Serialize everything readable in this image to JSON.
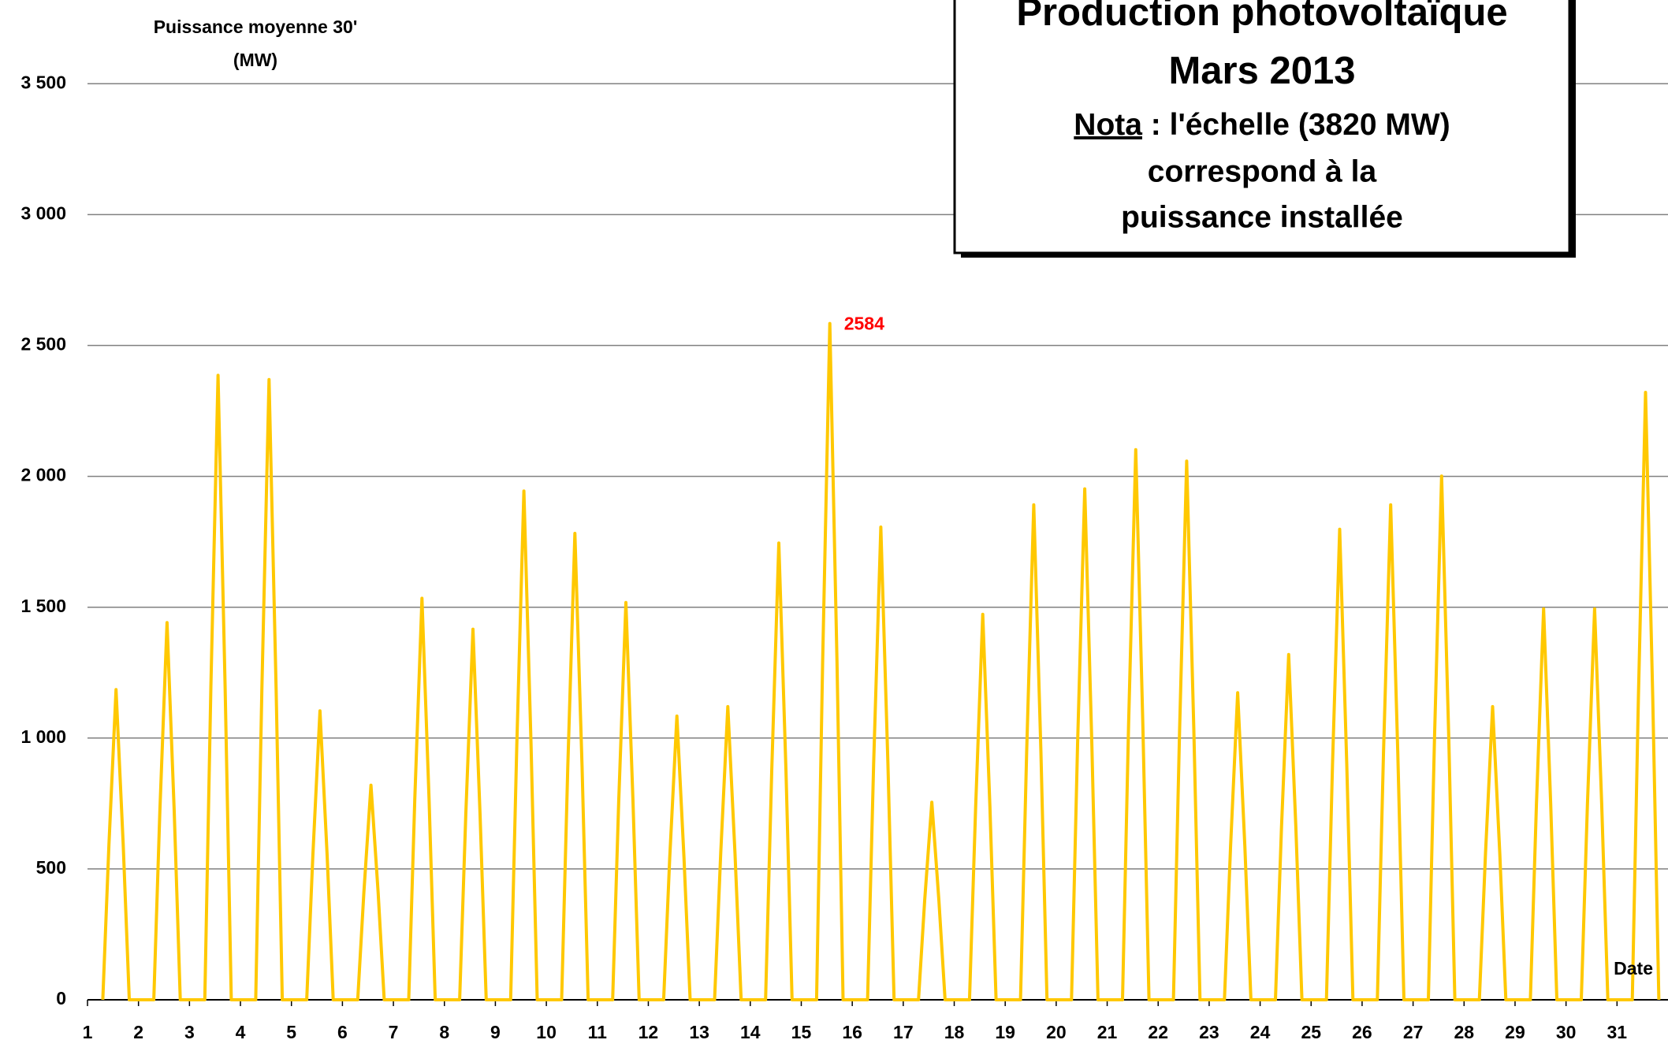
{
  "chart_data": {
    "type": "line",
    "title": [
      "Production photovoltaïque",
      "Mars  2013"
    ],
    "note": {
      "lead": "Nota",
      "lines": [
        " : l'échelle (3820 MW)",
        "correspond à la",
        "puissance installée"
      ]
    },
    "ylabel": [
      "Puissance moyenne 30'",
      "(MW)"
    ],
    "xlabel": "Date",
    "peak_label": "2584",
    "xlim": [
      1,
      32
    ],
    "xticks": [
      1,
      2,
      3,
      4,
      5,
      6,
      7,
      8,
      9,
      10,
      11,
      12,
      13,
      14,
      15,
      16,
      17,
      18,
      19,
      20,
      21,
      22,
      23,
      24,
      25,
      26,
      27,
      28,
      29,
      30,
      31
    ],
    "ylim": [
      0,
      3820
    ],
    "yticks": [
      0,
      500,
      {
        "value": 1000,
        "label": "1 000"
      },
      {
        "value": 1500,
        "label": "1 500"
      },
      {
        "value": 2000,
        "label": "2 000"
      },
      {
        "value": 2500,
        "label": "2 500"
      },
      {
        "value": 3000,
        "label": "3 000"
      },
      {
        "value": 3500,
        "label": "3 500"
      }
    ],
    "grid": true,
    "series": [
      {
        "color": "#ffc800",
        "x": [
          1.3,
          1.42,
          1.56,
          1.7,
          1.82,
          2.3,
          2.42,
          2.56,
          2.7,
          2.82,
          3.3,
          3.42,
          3.56,
          3.7,
          3.82,
          4.3,
          4.42,
          4.56,
          4.7,
          4.82,
          5.3,
          5.42,
          5.56,
          5.7,
          5.82,
          6.3,
          6.42,
          6.56,
          6.7,
          6.82,
          7.3,
          7.42,
          7.56,
          7.7,
          7.82,
          8.3,
          8.42,
          8.56,
          8.7,
          8.82,
          9.3,
          9.42,
          9.56,
          9.7,
          9.82,
          10.3,
          10.42,
          10.56,
          10.7,
          10.82,
          11.3,
          11.42,
          11.56,
          11.7,
          11.82,
          12.3,
          12.42,
          12.56,
          12.7,
          12.82,
          13.3,
          13.42,
          13.56,
          13.7,
          13.82,
          14.3,
          14.42,
          14.56,
          14.7,
          14.82,
          15.3,
          15.42,
          15.56,
          15.7,
          15.82,
          16.3,
          16.42,
          16.56,
          16.7,
          16.82,
          17.3,
          17.42,
          17.56,
          17.7,
          17.82,
          18.3,
          18.42,
          18.56,
          18.7,
          18.82,
          19.3,
          19.42,
          19.56,
          19.7,
          19.82,
          20.3,
          20.42,
          20.56,
          20.7,
          20.82,
          21.3,
          21.42,
          21.56,
          21.7,
          21.82,
          22.3,
          22.42,
          22.56,
          22.7,
          22.82,
          23.3,
          23.42,
          23.56,
          23.7,
          23.82,
          24.3,
          24.42,
          24.56,
          24.7,
          24.82,
          25.3,
          25.42,
          25.56,
          25.7,
          25.82,
          26.3,
          26.42,
          26.56,
          26.7,
          26.82,
          27.3,
          27.42,
          27.56,
          27.7,
          27.82,
          28.3,
          28.42,
          28.56,
          28.7,
          28.82,
          29.3,
          29.42,
          29.56,
          29.7,
          29.82,
          30.3,
          30.42,
          30.56,
          30.7,
          30.82,
          31.3,
          31.42,
          31.56,
          31.7,
          31.82
        ],
        "values": [
          0,
          593,
          1185,
          593,
          0,
          0,
          721,
          1441,
          721,
          0,
          0,
          1193,
          2386,
          1193,
          0,
          0,
          1185,
          2370,
          1185,
          0,
          0,
          552,
          1104,
          552,
          0,
          0,
          410,
          820,
          410,
          0,
          0,
          767,
          1534,
          767,
          0,
          0,
          708,
          1416,
          708,
          0,
          0,
          972,
          1944,
          972,
          0,
          0,
          891,
          1782,
          891,
          0,
          0,
          759,
          1518,
          759,
          0,
          0,
          542,
          1084,
          542,
          0,
          0,
          560,
          1120,
          560,
          0,
          0,
          873,
          1745,
          873,
          0,
          0,
          1292,
          2584,
          1292,
          0,
          0,
          903,
          1806,
          903,
          0,
          0,
          378,
          755,
          378,
          0,
          0,
          737,
          1473,
          737,
          0,
          0,
          946,
          1891,
          946,
          0,
          0,
          976,
          1952,
          976,
          0,
          0,
          1051,
          2102,
          1051,
          0,
          0,
          1029,
          2058,
          1029,
          0,
          0,
          587,
          1173,
          587,
          0,
          0,
          660,
          1319,
          660,
          0,
          0,
          899,
          1798,
          899,
          0,
          0,
          946,
          1891,
          946,
          0,
          0,
          1001,
          2001,
          1001,
          0,
          0,
          560,
          1120,
          560,
          0,
          0,
          747,
          1494,
          747,
          0,
          0,
          747,
          1494,
          747,
          0,
          0,
          1161,
          2321,
          1161,
          0
        ]
      }
    ]
  }
}
